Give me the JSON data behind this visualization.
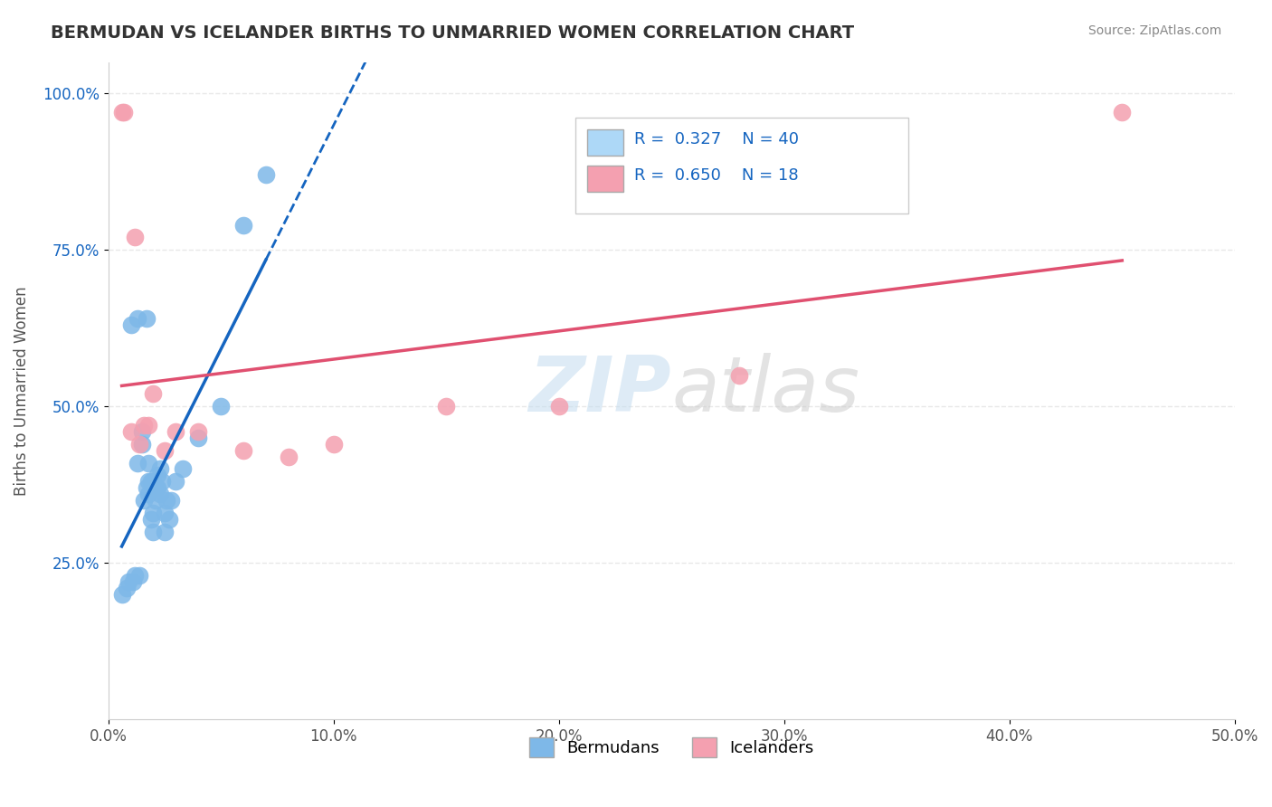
{
  "title": "BERMUDAN VS ICELANDER BIRTHS TO UNMARRIED WOMEN CORRELATION CHART",
  "source": "Source: ZipAtlas.com",
  "ylabel": "Births to Unmarried Women",
  "xlabel_bermudans": "Bermudans",
  "xlabel_icelanders": "Icelanders",
  "xlim": [
    0.0,
    0.5
  ],
  "ylim": [
    0.0,
    1.05
  ],
  "xtick_labels": [
    "0.0%",
    "10.0%",
    "20.0%",
    "30.0%",
    "40.0%",
    "50.0%"
  ],
  "xtick_vals": [
    0.0,
    0.1,
    0.2,
    0.3,
    0.4,
    0.5
  ],
  "ytick_labels": [
    "25.0%",
    "50.0%",
    "75.0%",
    "100.0%"
  ],
  "ytick_vals": [
    0.25,
    0.5,
    0.75,
    1.0
  ],
  "bermudans_color": "#7EB8E8",
  "icelanders_color": "#F4A0B0",
  "trendline_bermudans_color": "#1565C0",
  "trendline_icelanders_color": "#E05070",
  "legend_box_bermudans": "#ADD8F7",
  "legend_box_icelanders": "#F4A0B0",
  "R_bermudans": 0.327,
  "N_bermudans": 40,
  "R_icelanders": 0.65,
  "N_icelanders": 18,
  "R_N_color": "#1565C0",
  "watermark_zip": "ZIP",
  "watermark_atlas": "atlas",
  "bermudans_x": [
    0.006,
    0.008,
    0.009,
    0.01,
    0.011,
    0.012,
    0.013,
    0.013,
    0.014,
    0.015,
    0.015,
    0.016,
    0.017,
    0.017,
    0.018,
    0.018,
    0.018,
    0.019,
    0.019,
    0.02,
    0.02,
    0.02,
    0.021,
    0.021,
    0.022,
    0.022,
    0.023,
    0.023,
    0.024,
    0.025,
    0.025,
    0.026,
    0.027,
    0.028,
    0.03,
    0.033,
    0.04,
    0.05,
    0.06,
    0.07
  ],
  "bermudans_y": [
    0.2,
    0.21,
    0.22,
    0.63,
    0.22,
    0.23,
    0.41,
    0.64,
    0.23,
    0.44,
    0.46,
    0.35,
    0.37,
    0.64,
    0.36,
    0.38,
    0.41,
    0.32,
    0.38,
    0.3,
    0.33,
    0.38,
    0.35,
    0.37,
    0.37,
    0.39,
    0.36,
    0.4,
    0.38,
    0.3,
    0.33,
    0.35,
    0.32,
    0.35,
    0.38,
    0.4,
    0.45,
    0.5,
    0.79,
    0.87
  ],
  "icelanders_x": [
    0.006,
    0.007,
    0.01,
    0.012,
    0.014,
    0.016,
    0.018,
    0.02,
    0.025,
    0.03,
    0.04,
    0.06,
    0.08,
    0.1,
    0.15,
    0.2,
    0.28,
    0.45
  ],
  "icelanders_y": [
    0.97,
    0.97,
    0.46,
    0.77,
    0.44,
    0.47,
    0.47,
    0.52,
    0.43,
    0.46,
    0.46,
    0.43,
    0.42,
    0.44,
    0.5,
    0.5,
    0.55,
    0.97
  ],
  "grid_color": "#E8E8E8",
  "background_color": "#FFFFFF"
}
